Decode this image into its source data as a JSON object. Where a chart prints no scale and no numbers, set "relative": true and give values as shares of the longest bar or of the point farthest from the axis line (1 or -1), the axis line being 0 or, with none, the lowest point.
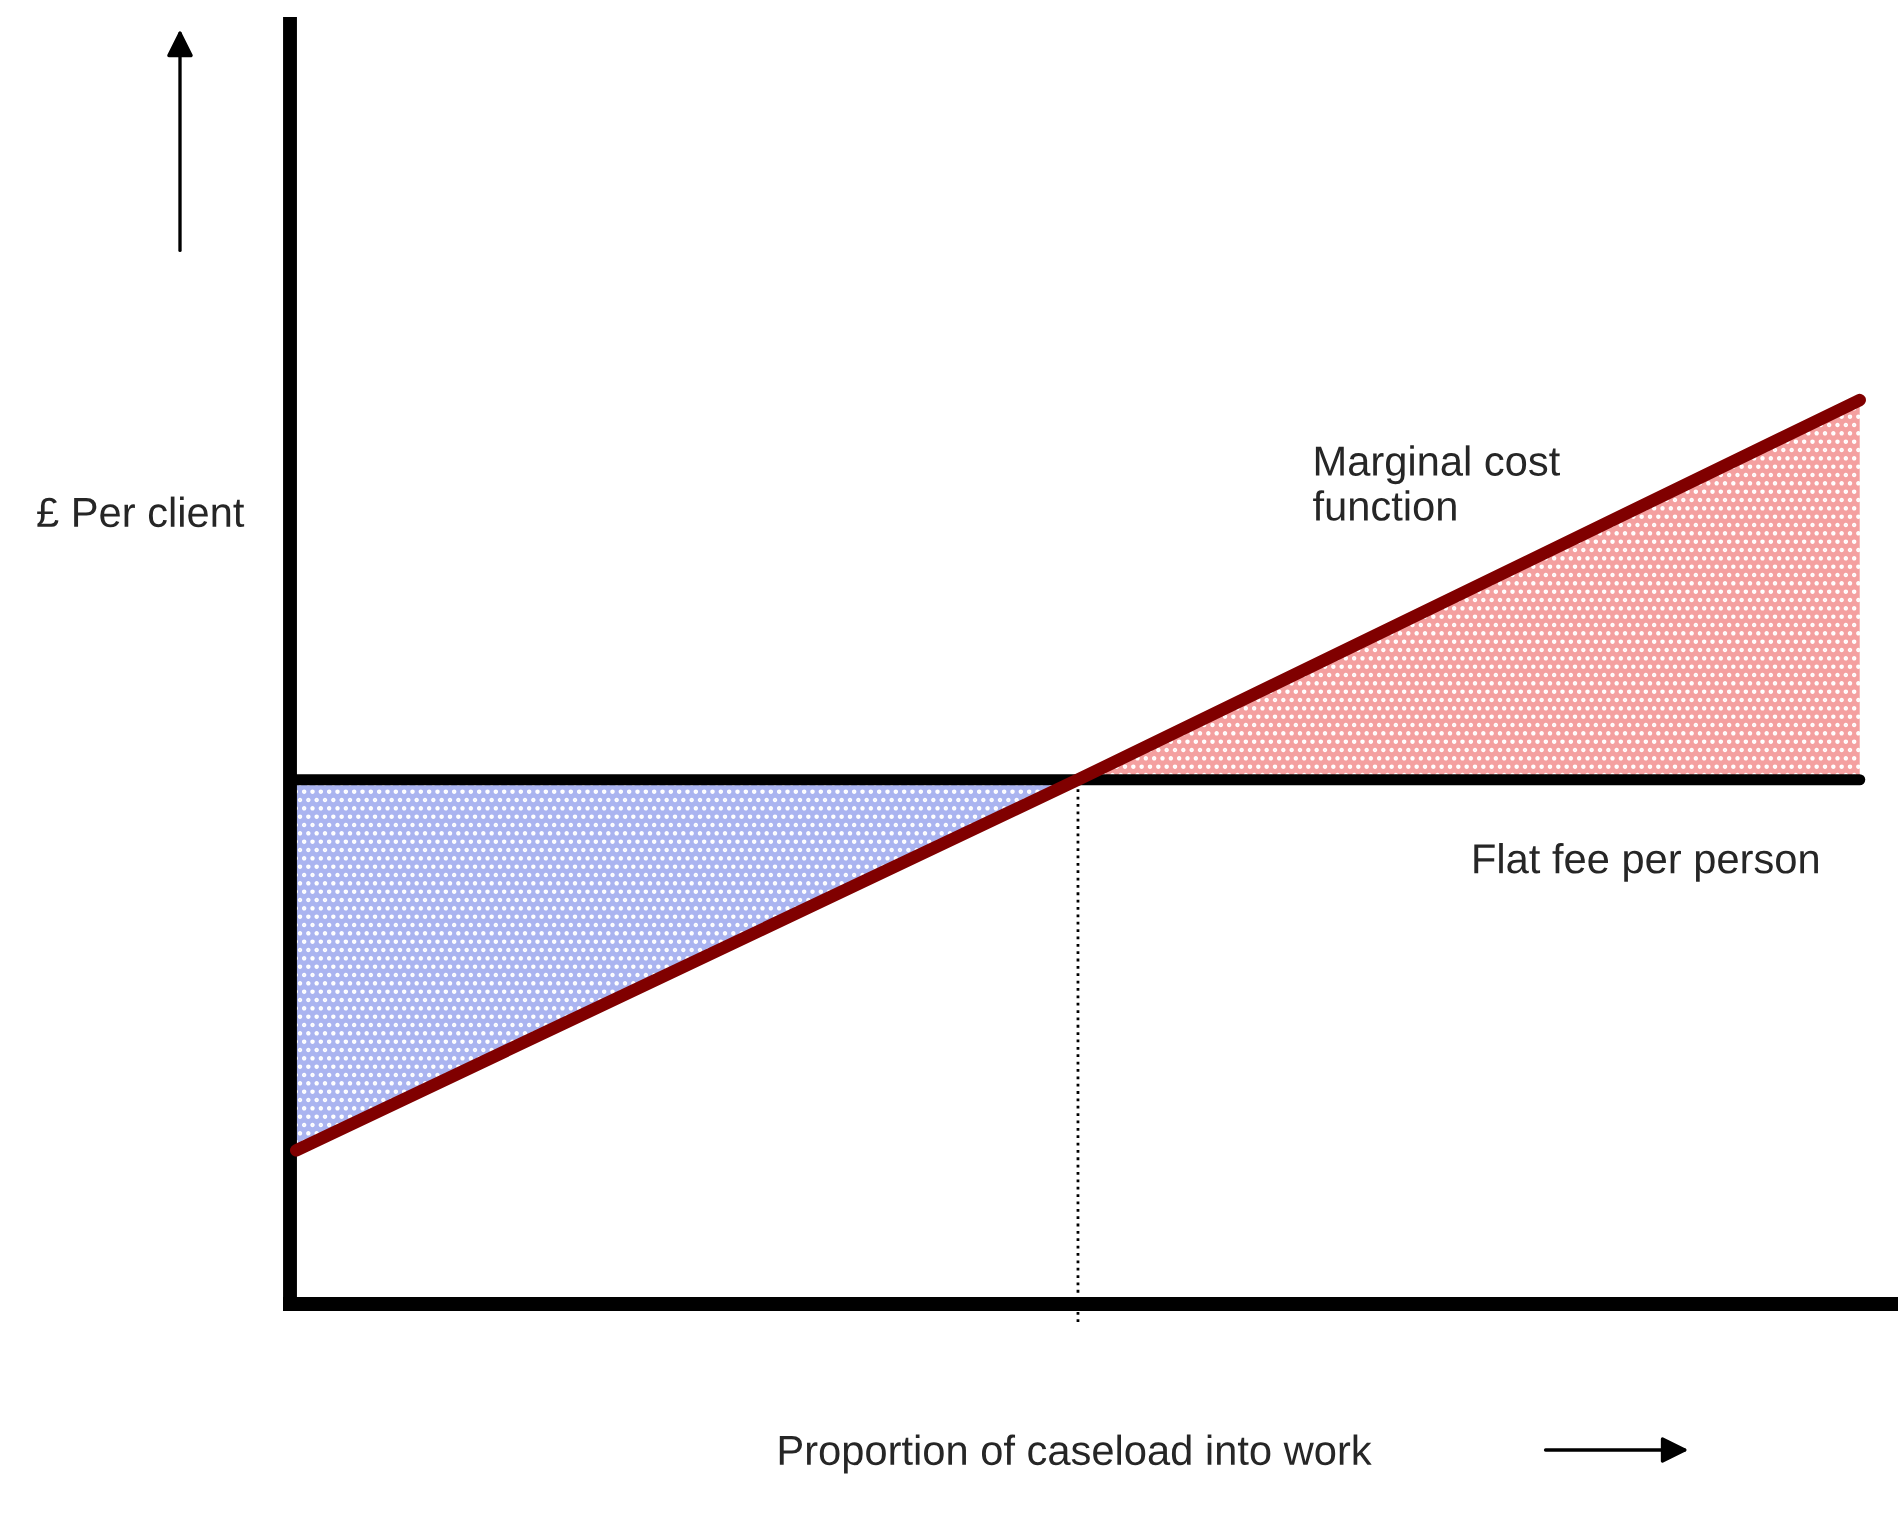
{
  "chart_data": {
    "type": "line",
    "relative": true,
    "xlabel": "Proportion of caseload into work",
    "ylabel": "£ Per client",
    "categories": [
      null,
      null,
      null
    ],
    "series": [
      {
        "type": "area",
        "color": "#aab4f0",
        "values": [
          0.58,
          0.58,
          null
        ]
      },
      {
        "type": "area",
        "color": "#f4a0a0",
        "values": [
          null,
          0.58,
          1.0
        ]
      },
      {
        "name": "Flat fee per person",
        "color": "#000000",
        "values": [
          0.58,
          0.58,
          0.58
        ]
      },
      {
        "name": "Marginal cost\nfunction",
        "color": "#800000",
        "values": [
          0.17,
          0.58,
          1.0
        ]
      }
    ],
    "legend": false,
    "line_style": "solid",
    "marker": "none"
  }
}
